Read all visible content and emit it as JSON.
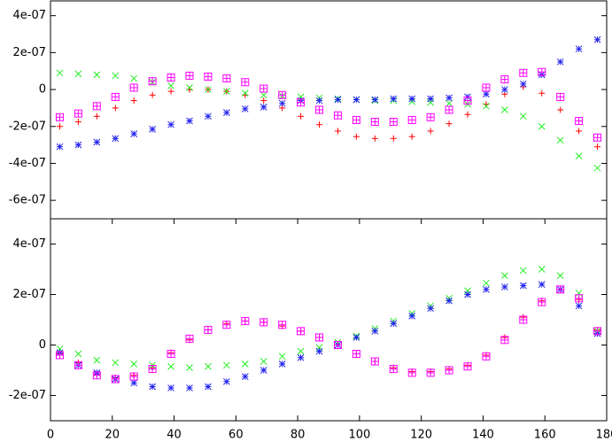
{
  "chart_data": [
    {
      "type": "scatter",
      "x": [
        3,
        9,
        15,
        21,
        27,
        33,
        39,
        45,
        51,
        57,
        63,
        69,
        75,
        81,
        87,
        93,
        99,
        105,
        111,
        117,
        123,
        129,
        135,
        141,
        147,
        153,
        159,
        165,
        171,
        177
      ],
      "xlim": [
        0,
        180
      ],
      "ylim": [
        -7e-07,
        4.8e-07
      ],
      "yticks": [
        {
          "value": 4e-07,
          "label": "4e-07"
        },
        {
          "value": 2e-07,
          "label": "2e-07"
        },
        0,
        {
          "value": -2e-07,
          "label": "-2e-07"
        },
        {
          "value": -4e-07,
          "label": "-4e-07"
        },
        {
          "value": -6e-07,
          "label": "-6e-07"
        }
      ],
      "series": [
        {
          "color": "#ff0000",
          "marker": "plus",
          "values": [
            -2e-07,
            -1.75e-07,
            -1.45e-07,
            -1e-07,
            -6e-08,
            -3e-08,
            -1e-08,
            0,
            0,
            -1e-08,
            -3e-08,
            -6e-08,
            -1e-07,
            -1.45e-07,
            -1.9e-07,
            -2.25e-07,
            -2.55e-07,
            -2.65e-07,
            -2.65e-07,
            -2.55e-07,
            -2.25e-07,
            -1.85e-07,
            -1.35e-07,
            -8e-08,
            -2.5e-08,
            1.5e-08,
            -2e-08,
            -1.1e-07,
            -2.25e-07,
            -3.1e-07
          ]
        },
        {
          "color": "#22ee22",
          "marker": "cross",
          "values": [
            9e-08,
            8.5e-08,
            8e-08,
            7.5e-08,
            6e-08,
            4e-08,
            2e-08,
            1e-08,
            0,
            -1e-08,
            -2e-08,
            -3e-08,
            -3.5e-08,
            -4e-08,
            -4.5e-08,
            -5e-08,
            -5.5e-08,
            -6e-08,
            -6e-08,
            -6.5e-08,
            -7e-08,
            -7.5e-08,
            -8e-08,
            -9e-08,
            -1.1e-07,
            -1.45e-07,
            -2e-07,
            -2.75e-07,
            -3.6e-07,
            -4.25e-07
          ]
        },
        {
          "color": "#2222ee",
          "marker": "star",
          "values": [
            -3.1e-07,
            -3e-07,
            -2.85e-07,
            -2.65e-07,
            -2.4e-07,
            -2.15e-07,
            -1.9e-07,
            -1.7e-07,
            -1.45e-07,
            -1.25e-07,
            -1.05e-07,
            -9.5e-08,
            -7.5e-08,
            -6e-08,
            -6e-08,
            -5.5e-08,
            -5.5e-08,
            -5.5e-08,
            -5e-08,
            -5e-08,
            -5e-08,
            -4.5e-08,
            -4e-08,
            -2.5e-08,
            0,
            3e-08,
            8e-08,
            1.5e-07,
            2.2e-07,
            2.7e-07
          ]
        },
        {
          "color": "#ff00ff",
          "marker": "box",
          "values": [
            -1.5e-07,
            -1.3e-07,
            -9e-08,
            -4e-08,
            1e-08,
            4.5e-08,
            6.5e-08,
            7.5e-08,
            7e-08,
            6e-08,
            4e-08,
            5e-09,
            -3e-08,
            -7e-08,
            -1.1e-07,
            -1.4e-07,
            -1.65e-07,
            -1.75e-07,
            -1.75e-07,
            -1.65e-07,
            -1.5e-07,
            -1.1e-07,
            -6e-08,
            1e-08,
            5.5e-08,
            9e-08,
            9.5e-08,
            -4e-08,
            -1.7e-07,
            -2.6e-07
          ]
        }
      ]
    },
    {
      "type": "scatter",
      "x": [
        3,
        9,
        15,
        21,
        27,
        33,
        39,
        45,
        51,
        57,
        63,
        69,
        75,
        81,
        87,
        93,
        99,
        105,
        111,
        117,
        123,
        129,
        135,
        141,
        147,
        153,
        159,
        165,
        171,
        177
      ],
      "xlim": [
        0,
        180
      ],
      "ylim": [
        -3e-07,
        5e-07
      ],
      "xticks": [
        0,
        20,
        40,
        60,
        80,
        100,
        120,
        140,
        160,
        180
      ],
      "yticks": [
        {
          "value": 4e-07,
          "label": "4e-07"
        },
        {
          "value": 2e-07,
          "label": "2e-07"
        },
        0,
        {
          "value": -2e-07,
          "label": "-2e-07"
        }
      ],
      "series": [
        {
          "color": "#ff0000",
          "marker": "plus",
          "values": [
            -3.5e-08,
            -7e-08,
            -1.15e-07,
            -1.3e-07,
            -1.2e-07,
            -9e-08,
            -3e-08,
            2e-08,
            6e-08,
            8.5e-08,
            9.5e-08,
            9e-08,
            7.5e-08,
            5.5e-08,
            3e-08,
            0,
            -3.5e-08,
            -6.5e-08,
            -9e-08,
            -1.05e-07,
            -1.05e-07,
            -9.5e-08,
            -8e-08,
            -4e-08,
            3e-08,
            1.1e-07,
            1.75e-07,
            2.2e-07,
            1.8e-07,
            6e-08
          ]
        },
        {
          "color": "#22ee22",
          "marker": "cross",
          "values": [
            -1.5e-08,
            -3.5e-08,
            -6e-08,
            -7e-08,
            -7.5e-08,
            -8e-08,
            -8.5e-08,
            -9e-08,
            -8.5e-08,
            -8e-08,
            -7.5e-08,
            -6.5e-08,
            -4.5e-08,
            -2.5e-08,
            -1e-08,
            1e-08,
            3.5e-08,
            6.5e-08,
            9.5e-08,
            1.25e-07,
            1.55e-07,
            1.85e-07,
            2.15e-07,
            2.45e-07,
            2.75e-07,
            2.95e-07,
            3e-07,
            2.75e-07,
            2.05e-07,
            5.5e-08
          ]
        },
        {
          "color": "#2222ee",
          "marker": "star",
          "values": [
            -3e-08,
            -8e-08,
            -1.1e-07,
            -1.35e-07,
            -1.5e-07,
            -1.65e-07,
            -1.7e-07,
            -1.7e-07,
            -1.65e-07,
            -1.45e-07,
            -1.25e-07,
            -1e-07,
            -7.5e-08,
            -5e-08,
            -2.5e-08,
            0,
            3e-08,
            5.5e-08,
            8.5e-08,
            1.15e-07,
            1.45e-07,
            1.75e-07,
            2e-07,
            2.2e-07,
            2.3e-07,
            2.35e-07,
            2.4e-07,
            2.2e-07,
            1.55e-07,
            4.5e-08
          ]
        },
        {
          "color": "#ff00ff",
          "marker": "box",
          "values": [
            -4e-08,
            -8e-08,
            -1.2e-07,
            -1.35e-07,
            -1.25e-07,
            -9.5e-08,
            -3.5e-08,
            2.5e-08,
            6e-08,
            8e-08,
            9.5e-08,
            9e-08,
            8e-08,
            5.5e-08,
            3e-08,
            0,
            -3.5e-08,
            -6.5e-08,
            -9.5e-08,
            -1.1e-07,
            -1.1e-07,
            -1e-07,
            -8.5e-08,
            -4.5e-08,
            2e-08,
            1e-07,
            1.7e-07,
            2.2e-07,
            1.85e-07,
            5.5e-08
          ]
        }
      ]
    }
  ]
}
